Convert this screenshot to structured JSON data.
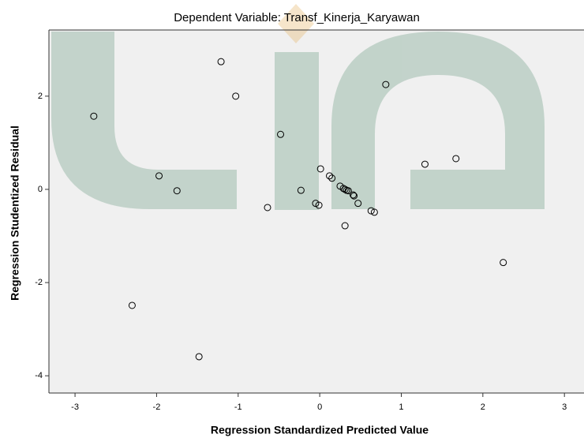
{
  "chart_data": {
    "type": "scatter",
    "title": "Dependent Variable: Transf_Kinerja_Karyawan",
    "x_label": "Regression Standardized Predicted Value",
    "y_label": "Regression Studentized Residual",
    "x": [
      -2.77,
      -2.3,
      -1.97,
      -1.75,
      -1.48,
      -1.21,
      -1.03,
      -0.64,
      -0.48,
      -0.23,
      -0.05,
      -0.01,
      0.01,
      0.12,
      0.15,
      0.25,
      0.29,
      0.31,
      0.33,
      0.35,
      0.41,
      0.42,
      0.47,
      0.31,
      0.63,
      0.67,
      0.81,
      1.29,
      1.67,
      2.25
    ],
    "values": [
      1.57,
      -2.49,
      0.29,
      -0.03,
      -3.59,
      2.74,
      2.0,
      -0.39,
      1.18,
      -0.02,
      -0.3,
      -0.34,
      0.44,
      0.29,
      0.24,
      0.07,
      0.02,
      0,
      -0.02,
      -0.03,
      -0.12,
      -0.14,
      -0.3,
      -0.78,
      -0.46,
      -0.49,
      2.25,
      0.54,
      0.66,
      -1.57
    ],
    "color": "#000000",
    "xlim": [
      -3.32,
      3.24
    ],
    "ylim": [
      -4.37,
      3.42
    ],
    "xticks": [
      -3,
      -2,
      -1,
      0,
      1,
      2,
      3
    ],
    "yticks": [
      -4,
      -2,
      0,
      2
    ]
  }
}
